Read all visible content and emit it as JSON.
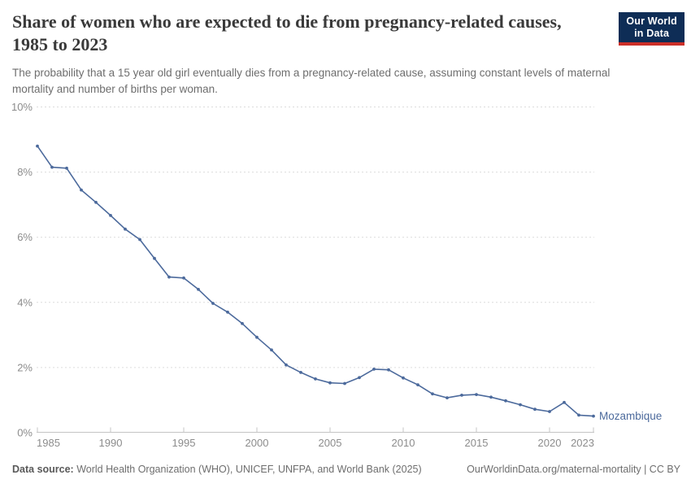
{
  "header": {
    "title": "Share of women who are expected to die from pregnancy-related causes, 1985 to 2023",
    "subtitle": "The probability that a 15 year old girl eventually dies from a pregnancy-related cause, assuming constant levels of maternal mortality and number of births per woman."
  },
  "logo": {
    "line1": "Our World",
    "line2": "in Data",
    "bg_color": "#0e2d56",
    "accent_color": "#cc2f28"
  },
  "chart_data": {
    "type": "line",
    "title": "Share of women who are expected to die from pregnancy-related causes, 1985 to 2023",
    "xlabel": "",
    "ylabel": "",
    "xlim": [
      1985,
      2023
    ],
    "ylim": [
      0,
      10
    ],
    "y_unit": "%",
    "x_ticks": [
      1985,
      1990,
      1995,
      2000,
      2005,
      2010,
      2015,
      2020,
      2023
    ],
    "y_ticks": [
      0,
      2,
      4,
      6,
      8,
      10
    ],
    "grid": "horizontal-dashed",
    "legend_position": "end-of-line",
    "series": [
      {
        "name": "Mozambique",
        "color": "#4C6A9C",
        "x": [
          1985,
          1986,
          1987,
          1988,
          1989,
          1990,
          1991,
          1992,
          1993,
          1994,
          1995,
          1996,
          1997,
          1998,
          1999,
          2000,
          2001,
          2002,
          2003,
          2004,
          2005,
          2006,
          2007,
          2008,
          2009,
          2010,
          2011,
          2012,
          2013,
          2014,
          2015,
          2016,
          2017,
          2018,
          2019,
          2020,
          2021,
          2022,
          2023
        ],
        "values": [
          8.8,
          8.15,
          8.12,
          7.45,
          7.07,
          6.67,
          6.25,
          5.93,
          5.35,
          4.78,
          4.75,
          4.4,
          3.97,
          3.7,
          3.35,
          2.93,
          2.54,
          2.08,
          1.85,
          1.65,
          1.53,
          1.51,
          1.69,
          1.95,
          1.93,
          1.68,
          1.47,
          1.19,
          1.07,
          1.15,
          1.17,
          1.09,
          0.98,
          0.86,
          0.72,
          0.65,
          0.93,
          0.54,
          0.51
        ]
      }
    ],
    "colors": {
      "gridline": "#dcdcdc",
      "axis": "#c4c4c4",
      "tick_label": "#8c8c8c"
    }
  },
  "footer": {
    "source_label": "Data source:",
    "source_text": " World Health Organization (WHO), UNICEF, UNFPA, and World Bank (2025)",
    "link_text": "OurWorldinData.org/maternal-mortality | CC BY"
  }
}
